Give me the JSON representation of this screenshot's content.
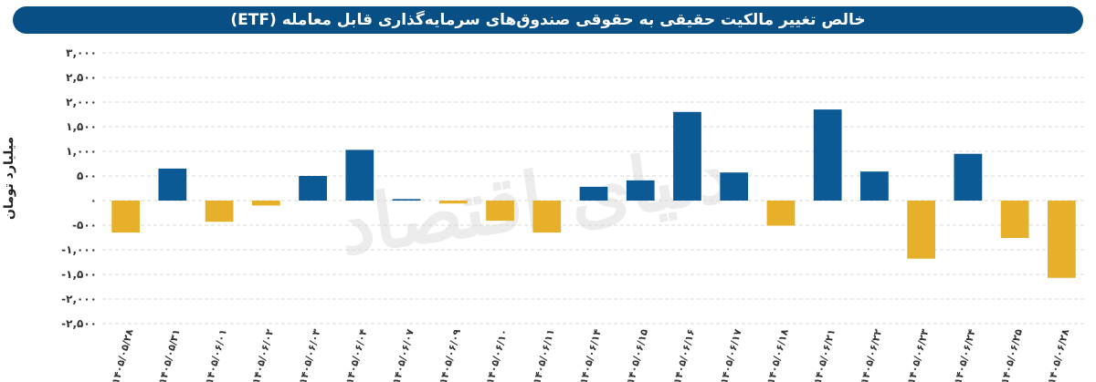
{
  "chart_data": {
    "type": "bar",
    "title": "خالص تغییر مالکیت حقیقی به حقوقی صندوق‌های سرمایه‌گذاری قابل معامله (ETF)",
    "ylabel": "میلیارد تومان",
    "xlabel": "",
    "ylim": [
      -2500,
      3000
    ],
    "yticks": [
      3000,
      2500,
      2000,
      1500,
      1000,
      500,
      0,
      -500,
      -1000,
      -1500,
      -2000,
      -2500
    ],
    "ytick_labels": [
      "۳,۰۰۰",
      "۲,۵۰۰",
      "۲,۰۰۰",
      "۱,۵۰۰",
      "۱,۰۰۰",
      "۵۰۰",
      "۰",
      "-۵۰۰",
      "-۱,۰۰۰",
      "-۱,۵۰۰",
      "-۲,۰۰۰",
      "-۲,۵۰۰"
    ],
    "grid": true,
    "categories": [
      "۱۴۰۵/۰۵/۲۸",
      "۱۴۰۵/۰۵/۳۱",
      "۱۴۰۵/۰۶/۰۱",
      "۱۴۰۵/۰۶/۰۲",
      "۱۴۰۵/۰۶/۰۳",
      "۱۴۰۵/۰۶/۰۴",
      "۱۴۰۵/۰۶/۰۷",
      "۱۴۰۵/۰۶/۰۹",
      "۱۴۰۵/۰۶/۱۰",
      "۱۴۰۵/۰۶/۱۱",
      "۱۴۰۵/۰۶/۱۴",
      "۱۴۰۵/۰۶/۱۵",
      "۱۴۰۵/۰۶/۱۶",
      "۱۴۰۵/۰۶/۱۷",
      "۱۴۰۵/۰۶/۱۸",
      "۱۴۰۵/۰۶/۲۱",
      "۱۴۰۵/۰۶/۲۲",
      "۱۴۰۵/۰۶/۲۳",
      "۱۴۰۵/۰۶/۲۴",
      "۱۴۰۵/۰۶/۲۵",
      "۱۴۰۵/۰۶/۲۸"
    ],
    "values": [
      -650,
      650,
      -430,
      -100,
      500,
      1030,
      30,
      -60,
      -410,
      -650,
      280,
      410,
      1800,
      570,
      -510,
      1850,
      590,
      -1180,
      950,
      -760,
      -1570
    ],
    "colors": {
      "positive": "#0b5a96",
      "negative": "#e7b02b",
      "grid": "#d9d9d9",
      "text": "#333333"
    }
  },
  "watermark": "دنیای اقتصاد"
}
